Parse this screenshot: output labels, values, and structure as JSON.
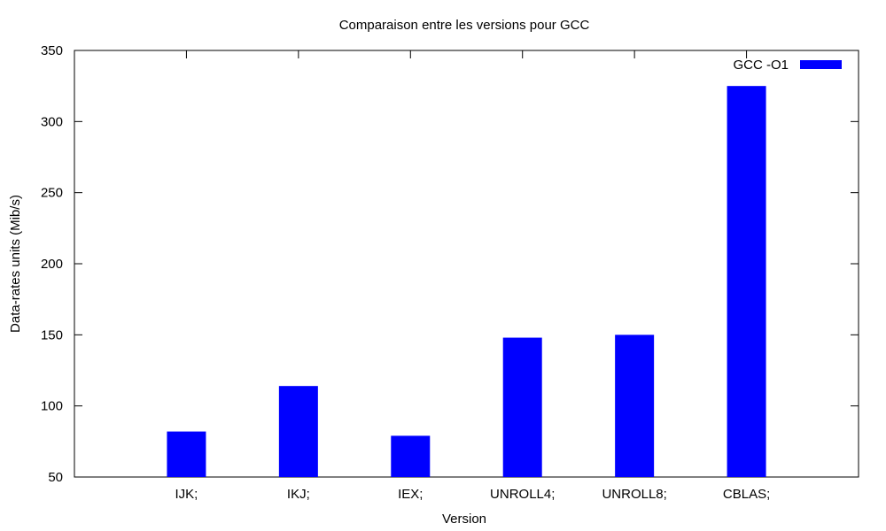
{
  "chart_data": {
    "type": "bar",
    "title": "Comparaison entre les versions pour GCC",
    "xlabel": "Version",
    "ylabel": "Data-rates units (Mib/s)",
    "categories": [
      "IJK;",
      "IKJ;",
      "IEX;",
      "UNROLL4;",
      "UNROLL8;",
      "CBLAS;"
    ],
    "series": [
      {
        "name": "GCC -O1",
        "color": "#0000ff",
        "values": [
          82,
          114,
          79,
          148,
          150,
          325
        ]
      }
    ],
    "ylim": [
      50,
      350
    ],
    "yticks": [
      50,
      100,
      150,
      200,
      250,
      300,
      350
    ],
    "legend_position": "top-right",
    "grid": false
  }
}
